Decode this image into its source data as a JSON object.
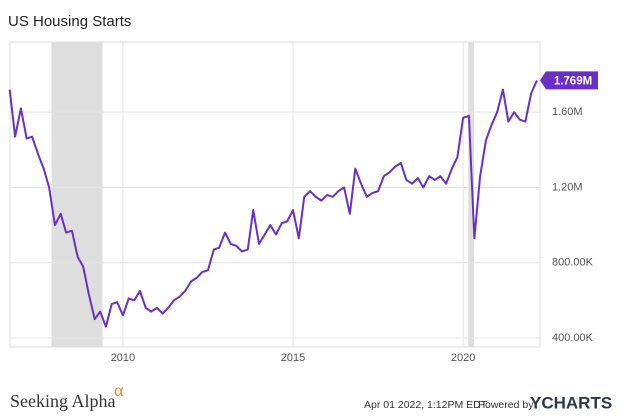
{
  "chart_data": {
    "type": "line",
    "title": "US Housing Starts",
    "x": [
      2006.67,
      2006.83,
      2007.0,
      2007.17,
      2007.33,
      2007.5,
      2007.67,
      2007.83,
      2008.0,
      2008.17,
      2008.33,
      2008.5,
      2008.67,
      2008.83,
      2009.0,
      2009.17,
      2009.33,
      2009.5,
      2009.67,
      2009.83,
      2010.0,
      2010.17,
      2010.33,
      2010.5,
      2010.67,
      2010.83,
      2011.0,
      2011.17,
      2011.33,
      2011.5,
      2011.67,
      2011.83,
      2012.0,
      2012.17,
      2012.33,
      2012.5,
      2012.67,
      2012.83,
      2013.0,
      2013.17,
      2013.33,
      2013.5,
      2013.67,
      2013.83,
      2014.0,
      2014.17,
      2014.33,
      2014.5,
      2014.67,
      2014.83,
      2015.0,
      2015.17,
      2015.33,
      2015.5,
      2015.67,
      2015.83,
      2016.0,
      2016.17,
      2016.33,
      2016.5,
      2016.67,
      2016.83,
      2017.0,
      2017.17,
      2017.33,
      2017.5,
      2017.67,
      2017.83,
      2018.0,
      2018.17,
      2018.33,
      2018.5,
      2018.67,
      2018.83,
      2019.0,
      2019.17,
      2019.33,
      2019.5,
      2019.67,
      2019.83,
      2020.0,
      2020.17,
      2020.33,
      2020.5,
      2020.67,
      2020.83,
      2021.0,
      2021.17,
      2021.33,
      2021.5,
      2021.67,
      2021.83,
      2022.0,
      2022.17
    ],
    "series": [
      {
        "name": "US Housing Starts",
        "color": "#6a2fc9",
        "values": [
          1720000,
          1470000,
          1620000,
          1460000,
          1470000,
          1380000,
          1300000,
          1200000,
          1000000,
          1060000,
          960000,
          970000,
          830000,
          780000,
          630000,
          500000,
          540000,
          460000,
          580000,
          590000,
          520000,
          610000,
          600000,
          650000,
          560000,
          540000,
          560000,
          530000,
          560000,
          600000,
          620000,
          650000,
          700000,
          720000,
          750000,
          760000,
          870000,
          880000,
          960000,
          900000,
          890000,
          860000,
          870000,
          1080000,
          900000,
          950000,
          1000000,
          950000,
          1010000,
          1020000,
          1080000,
          930000,
          1150000,
          1180000,
          1150000,
          1130000,
          1160000,
          1150000,
          1180000,
          1200000,
          1060000,
          1300000,
          1220000,
          1150000,
          1170000,
          1180000,
          1260000,
          1280000,
          1310000,
          1330000,
          1240000,
          1220000,
          1250000,
          1200000,
          1260000,
          1240000,
          1260000,
          1220000,
          1300000,
          1360000,
          1570000,
          1580000,
          930000,
          1260000,
          1450000,
          1530000,
          1600000,
          1720000,
          1550000,
          1600000,
          1560000,
          1550000,
          1700000,
          1769000
        ],
        "value_labels": [
          null,
          null,
          null,
          null,
          null,
          null,
          null,
          null,
          null,
          null,
          null,
          null,
          null,
          null,
          null,
          null,
          null,
          null,
          null,
          null,
          null,
          null,
          null,
          null,
          null,
          null,
          null,
          null,
          null,
          null,
          null,
          null,
          null,
          null,
          null,
          null,
          null,
          null,
          null,
          null,
          null,
          null,
          null,
          null,
          null,
          null,
          null,
          null,
          null,
          null,
          null,
          null,
          null,
          null,
          null,
          null,
          null,
          null,
          null,
          null,
          null,
          null,
          null,
          null,
          null,
          null,
          null,
          null,
          null,
          null,
          null,
          null,
          null,
          null,
          null,
          null,
          null,
          null,
          null,
          null,
          null,
          null,
          null,
          null,
          null,
          null,
          null,
          null,
          null,
          null,
          null,
          null,
          null,
          "1.769M"
        ]
      }
    ],
    "xlim": [
      2006.68,
      2022.26
    ],
    "xticks": [
      2010,
      2015,
      2020
    ],
    "ylim": [
      352000,
      1973000
    ],
    "yticks": [
      {
        "value": 400000,
        "label": "400.00K"
      },
      {
        "value": 800000,
        "label": "800.00K"
      },
      {
        "value": 1200000,
        "label": "1.20M"
      },
      {
        "value": 1600000,
        "label": "1.60M"
      }
    ],
    "grid": true,
    "shaded_ranges": [
      [
        2007.9,
        2009.4
      ],
      [
        2020.15,
        2020.32
      ]
    ]
  },
  "footer": {
    "brand": "Seeking Alpha",
    "brand_mark": "α",
    "timestamp": "Apr 01 2022, 1:12PM EDT.",
    "powered_by": "Powered by",
    "provider": "YCHARTS"
  }
}
